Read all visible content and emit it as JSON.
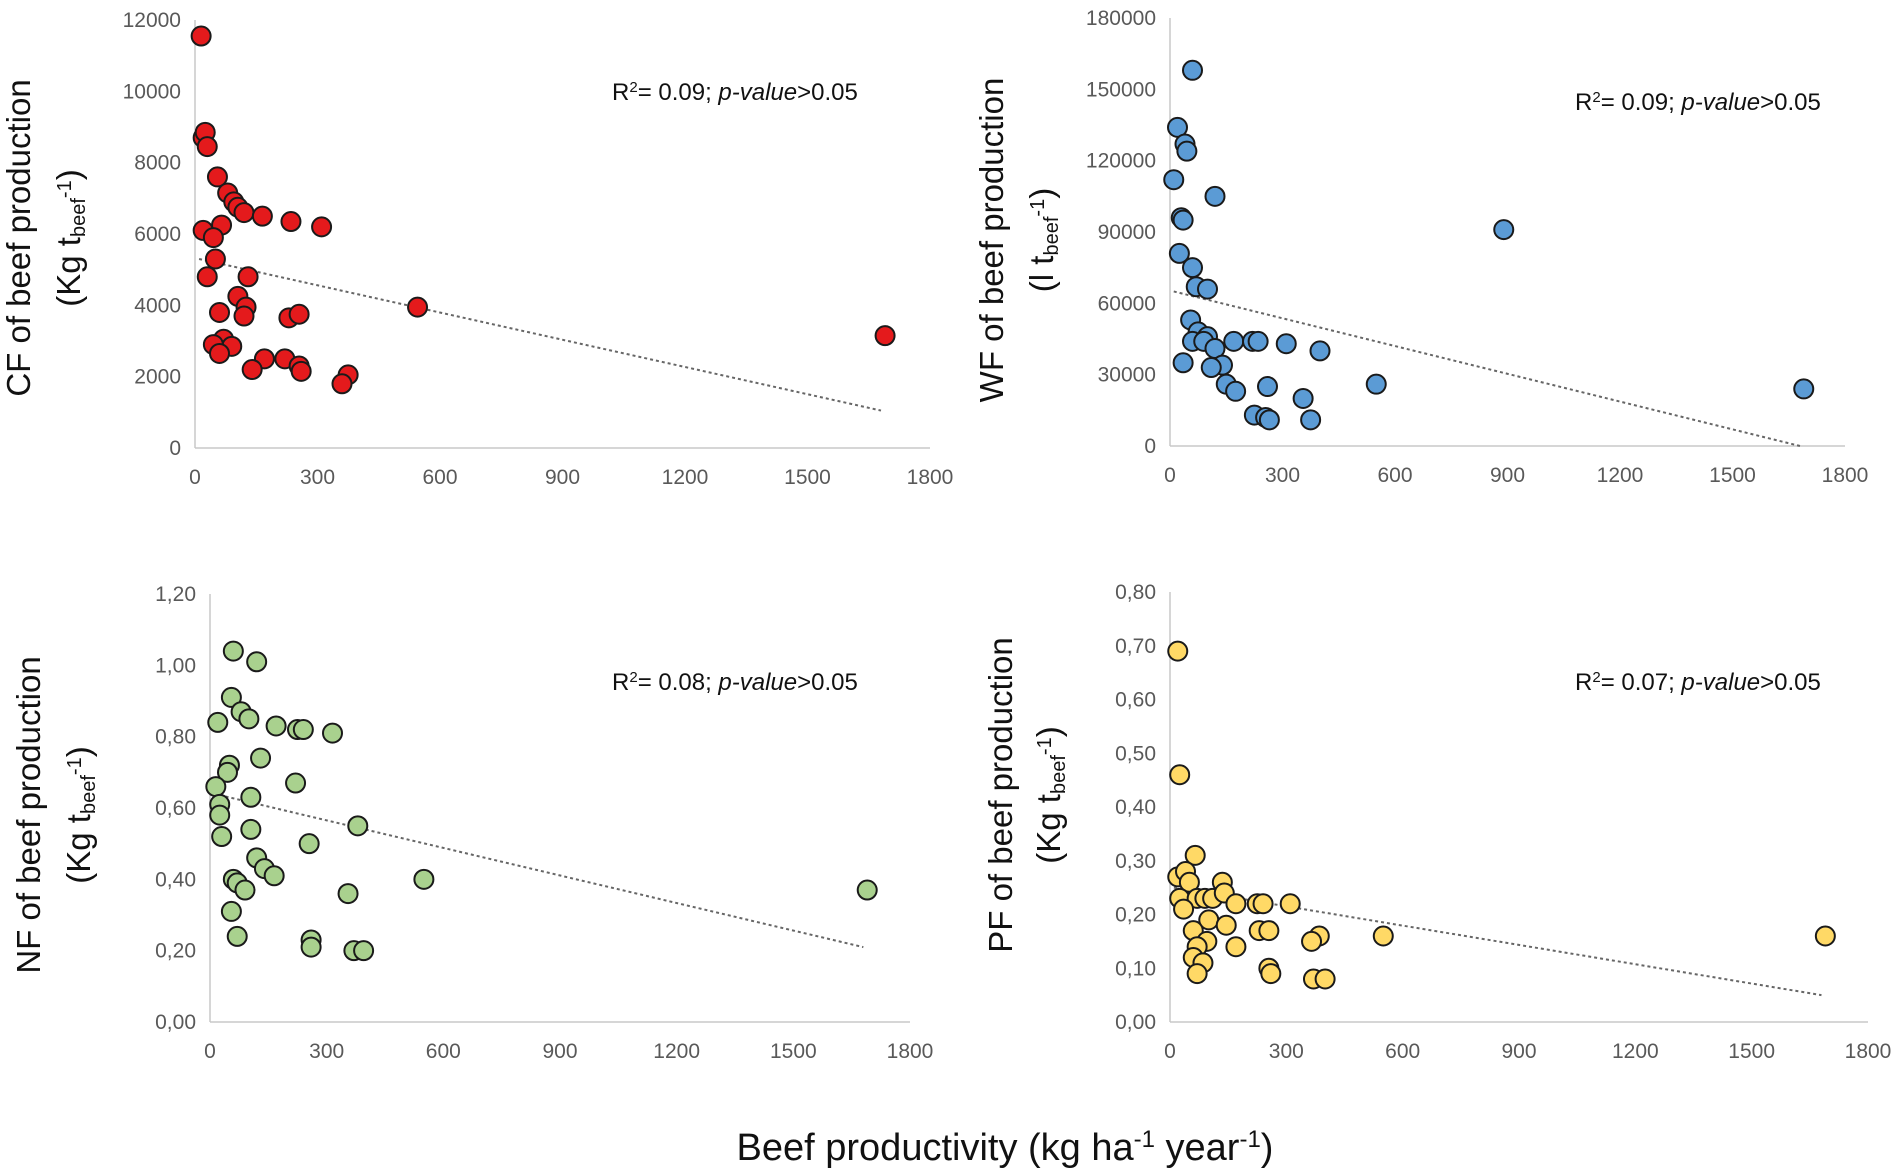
{
  "x_label": {
    "main": "Beef productivity (kg ha",
    "sup1": "-1",
    "mid": " year",
    "sup2": "-1",
    "end": ")"
  },
  "chart_data": [
    {
      "id": "cf",
      "type": "scatter",
      "color": "#e41a1c",
      "ylabel_line1": "CF of beef production",
      "ylabel_line2": {
        "pre": "(Kg t",
        "sub": "beef",
        "sup": "-1",
        "post": ")"
      },
      "r2": {
        "pre": "R",
        "sup": "2",
        "mid": "= 0.09; ",
        "ital": "p-value",
        "post": ">0.05"
      },
      "xlim": [
        0,
        1800
      ],
      "ylim": [
        0,
        12000
      ],
      "xticks": [
        0,
        300,
        600,
        900,
        1200,
        1500,
        1800
      ],
      "xtick_labels": [
        "0",
        "300",
        "600",
        "900",
        "1200",
        "1500",
        "1800"
      ],
      "yticks": [
        0,
        2000,
        4000,
        6000,
        8000,
        10000,
        12000
      ],
      "ytick_labels": [
        "0",
        "2000",
        "4000",
        "6000",
        "8000",
        "10000",
        "12000"
      ],
      "trend": [
        [
          10,
          5300
        ],
        [
          1680,
          1050
        ]
      ],
      "points": [
        [
          15,
          11550
        ],
        [
          20,
          8700
        ],
        [
          25,
          8850
        ],
        [
          30,
          8450
        ],
        [
          55,
          7600
        ],
        [
          80,
          7150
        ],
        [
          95,
          6900
        ],
        [
          105,
          6750
        ],
        [
          120,
          6600
        ],
        [
          165,
          6500
        ],
        [
          235,
          6350
        ],
        [
          310,
          6200
        ],
        [
          65,
          6250
        ],
        [
          20,
          6100
        ],
        [
          45,
          5900
        ],
        [
          50,
          5300
        ],
        [
          30,
          4800
        ],
        [
          130,
          4800
        ],
        [
          105,
          4250
        ],
        [
          125,
          3950
        ],
        [
          120,
          3700
        ],
        [
          60,
          3800
        ],
        [
          230,
          3650
        ],
        [
          255,
          3750
        ],
        [
          545,
          3950
        ],
        [
          1690,
          3150
        ],
        [
          70,
          3050
        ],
        [
          90,
          2850
        ],
        [
          45,
          2900
        ],
        [
          60,
          2650
        ],
        [
          170,
          2500
        ],
        [
          220,
          2500
        ],
        [
          140,
          2200
        ],
        [
          255,
          2300
        ],
        [
          260,
          2150
        ],
        [
          375,
          2050
        ],
        [
          360,
          1800
        ]
      ]
    },
    {
      "id": "wf",
      "type": "scatter",
      "color": "#5b9bd5",
      "ylabel_line1": "WF of beef production",
      "ylabel_line2": {
        "pre": "(l t",
        "sub": "beef",
        "sup": "-1",
        "post": ")"
      },
      "r2": {
        "pre": "R",
        "sup": "2",
        "mid": "= 0.09; ",
        "ital": "p-value",
        "post": ">0.05"
      },
      "xlim": [
        0,
        1800
      ],
      "ylim": [
        0,
        180000
      ],
      "xticks": [
        0,
        300,
        600,
        900,
        1200,
        1500,
        1800
      ],
      "xtick_labels": [
        "0",
        "300",
        "600",
        "900",
        "1200",
        "1500",
        "1800"
      ],
      "yticks": [
        0,
        30000,
        60000,
        90000,
        120000,
        150000,
        180000
      ],
      "ytick_labels": [
        "0",
        "30000",
        "60000",
        "90000",
        "120000",
        "150000",
        "180000"
      ],
      "trend": [
        [
          10,
          65000
        ],
        [
          1680,
          0
        ]
      ],
      "points": [
        [
          60,
          158000
        ],
        [
          20,
          134000
        ],
        [
          40,
          127000
        ],
        [
          45,
          124000
        ],
        [
          10,
          112000
        ],
        [
          120,
          105000
        ],
        [
          30,
          96000
        ],
        [
          35,
          95000
        ],
        [
          890,
          91000
        ],
        [
          25,
          81000
        ],
        [
          60,
          75000
        ],
        [
          70,
          67000
        ],
        [
          100,
          66000
        ],
        [
          55,
          53000
        ],
        [
          75,
          48000
        ],
        [
          100,
          46000
        ],
        [
          60,
          44000
        ],
        [
          90,
          44000
        ],
        [
          120,
          41000
        ],
        [
          170,
          44000
        ],
        [
          220,
          44000
        ],
        [
          235,
          44000
        ],
        [
          310,
          43000
        ],
        [
          400,
          40000
        ],
        [
          35,
          35000
        ],
        [
          140,
          34000
        ],
        [
          110,
          33000
        ],
        [
          150,
          26000
        ],
        [
          175,
          23000
        ],
        [
          260,
          25000
        ],
        [
          550,
          26000
        ],
        [
          1690,
          24000
        ],
        [
          355,
          20000
        ],
        [
          225,
          13000
        ],
        [
          255,
          12000
        ],
        [
          265,
          11000
        ],
        [
          375,
          11000
        ]
      ]
    },
    {
      "id": "nf",
      "type": "scatter",
      "color": "#a9d18e",
      "ylabel_line1": "NF of beef production",
      "ylabel_line2": {
        "pre": "(Kg t",
        "sub": "beef",
        "sup": "-1",
        "post": ")"
      },
      "r2": {
        "pre": "R",
        "sup": "2",
        "mid": "= 0.08; ",
        "ital": "p-value",
        "post": ">0.05"
      },
      "xlim": [
        0,
        1800
      ],
      "ylim": [
        0,
        1.2
      ],
      "xticks": [
        0,
        300,
        600,
        900,
        1200,
        1500,
        1800
      ],
      "xtick_labels": [
        "0",
        "300",
        "600",
        "900",
        "1200",
        "1500",
        "1800"
      ],
      "yticks": [
        0,
        0.2,
        0.4,
        0.6,
        0.8,
        1.0,
        1.2
      ],
      "ytick_labels": [
        "0,00",
        "0,20",
        "0,40",
        "0,60",
        "0,80",
        "1,00",
        "1,20"
      ],
      "trend": [
        [
          10,
          0.64
        ],
        [
          1680,
          0.21
        ]
      ],
      "points": [
        [
          60,
          1.04
        ],
        [
          120,
          1.01
        ],
        [
          55,
          0.91
        ],
        [
          80,
          0.87
        ],
        [
          100,
          0.85
        ],
        [
          20,
          0.84
        ],
        [
          170,
          0.83
        ],
        [
          225,
          0.82
        ],
        [
          240,
          0.82
        ],
        [
          315,
          0.81
        ],
        [
          130,
          0.74
        ],
        [
          50,
          0.72
        ],
        [
          45,
          0.7
        ],
        [
          15,
          0.66
        ],
        [
          220,
          0.67
        ],
        [
          105,
          0.63
        ],
        [
          25,
          0.61
        ],
        [
          25,
          0.58
        ],
        [
          380,
          0.55
        ],
        [
          105,
          0.54
        ],
        [
          30,
          0.52
        ],
        [
          255,
          0.5
        ],
        [
          120,
          0.46
        ],
        [
          140,
          0.43
        ],
        [
          165,
          0.41
        ],
        [
          550,
          0.4
        ],
        [
          60,
          0.4
        ],
        [
          70,
          0.39
        ],
        [
          90,
          0.37
        ],
        [
          1690,
          0.37
        ],
        [
          355,
          0.36
        ],
        [
          55,
          0.31
        ],
        [
          70,
          0.24
        ],
        [
          260,
          0.23
        ],
        [
          260,
          0.21
        ],
        [
          370,
          0.2
        ],
        [
          395,
          0.2
        ]
      ]
    },
    {
      "id": "pf",
      "type": "scatter",
      "color": "#ffd966",
      "ylabel_line1": "PF of beef production",
      "ylabel_line2": {
        "pre": "(Kg t",
        "sub": "beef",
        "sup": "-1",
        "post": ")"
      },
      "r2": {
        "pre": "R",
        "sup": "2",
        "mid": "= 0.07; ",
        "ital": "p-value",
        "post": ">0.05"
      },
      "xlim": [
        0,
        1800
      ],
      "ylim": [
        0,
        0.8
      ],
      "xticks": [
        0,
        300,
        600,
        900,
        1200,
        1500,
        1800
      ],
      "xtick_labels": [
        "0",
        "300",
        "600",
        "900",
        "1200",
        "1500",
        "1800"
      ],
      "yticks": [
        0,
        0.1,
        0.2,
        0.3,
        0.4,
        0.5,
        0.6,
        0.7,
        0.8
      ],
      "ytick_labels": [
        "0,00",
        "0,10",
        "0,20",
        "0,30",
        "0,40",
        "0,50",
        "0,60",
        "0,70",
        "0,80"
      ],
      "trend": [
        [
          10,
          0.25
        ],
        [
          1680,
          0.05
        ]
      ],
      "points": [
        [
          20,
          0.69
        ],
        [
          25,
          0.46
        ],
        [
          65,
          0.31
        ],
        [
          20,
          0.27
        ],
        [
          40,
          0.28
        ],
        [
          50,
          0.26
        ],
        [
          135,
          0.26
        ],
        [
          25,
          0.23
        ],
        [
          70,
          0.23
        ],
        [
          90,
          0.23
        ],
        [
          110,
          0.23
        ],
        [
          140,
          0.24
        ],
        [
          170,
          0.22
        ],
        [
          225,
          0.22
        ],
        [
          240,
          0.22
        ],
        [
          310,
          0.22
        ],
        [
          35,
          0.21
        ],
        [
          100,
          0.19
        ],
        [
          145,
          0.18
        ],
        [
          60,
          0.17
        ],
        [
          230,
          0.17
        ],
        [
          255,
          0.17
        ],
        [
          95,
          0.15
        ],
        [
          385,
          0.16
        ],
        [
          550,
          0.16
        ],
        [
          1690,
          0.16
        ],
        [
          365,
          0.15
        ],
        [
          70,
          0.14
        ],
        [
          170,
          0.14
        ],
        [
          60,
          0.12
        ],
        [
          85,
          0.11
        ],
        [
          255,
          0.1
        ],
        [
          70,
          0.09
        ],
        [
          260,
          0.09
        ],
        [
          370,
          0.08
        ],
        [
          400,
          0.08
        ]
      ]
    }
  ]
}
